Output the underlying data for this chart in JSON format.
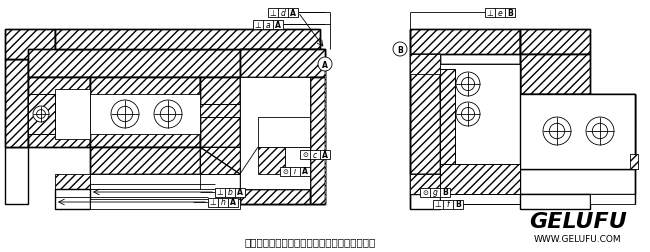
{
  "title": "单级谐波传动组件安装时的位置公差要求示意图",
  "brand": "GELUFU",
  "website": "WWW.GELUFU.COM",
  "bg_color": "#ffffff",
  "fig_width": 6.5,
  "fig_height": 2.53,
  "dpi": 100
}
